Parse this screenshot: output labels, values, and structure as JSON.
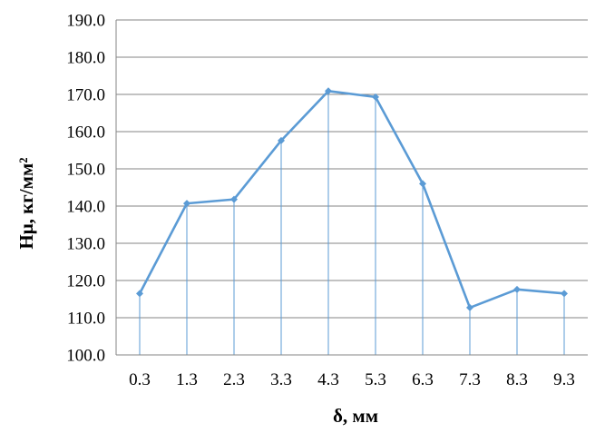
{
  "chart_data": {
    "type": "line",
    "title": "",
    "xlabel": "δ, мм",
    "ylabel": "Hμ, кг/мм²",
    "categories": [
      "0.3",
      "1.3",
      "2.3",
      "3.3",
      "4.3",
      "5.3",
      "6.3",
      "7.3",
      "8.3",
      "9.3"
    ],
    "series": [
      {
        "values": [
          116.5,
          140.7,
          141.8,
          157.6,
          170.9,
          169.3,
          146.0,
          112.7,
          117.6,
          116.5
        ]
      }
    ],
    "ylim": [
      100,
      190
    ],
    "yticks": [
      "100.0",
      "110.0",
      "120.0",
      "130.0",
      "140.0",
      "150.0",
      "160.0",
      "170.0",
      "180.0",
      "190.0"
    ],
    "drop_lines": true,
    "grid": "horizontal",
    "legend": "none",
    "colors": {
      "series": "#5B9BD5",
      "drop_line": "#5B9BD5",
      "grid": "#868686",
      "axis": "#868686"
    }
  }
}
